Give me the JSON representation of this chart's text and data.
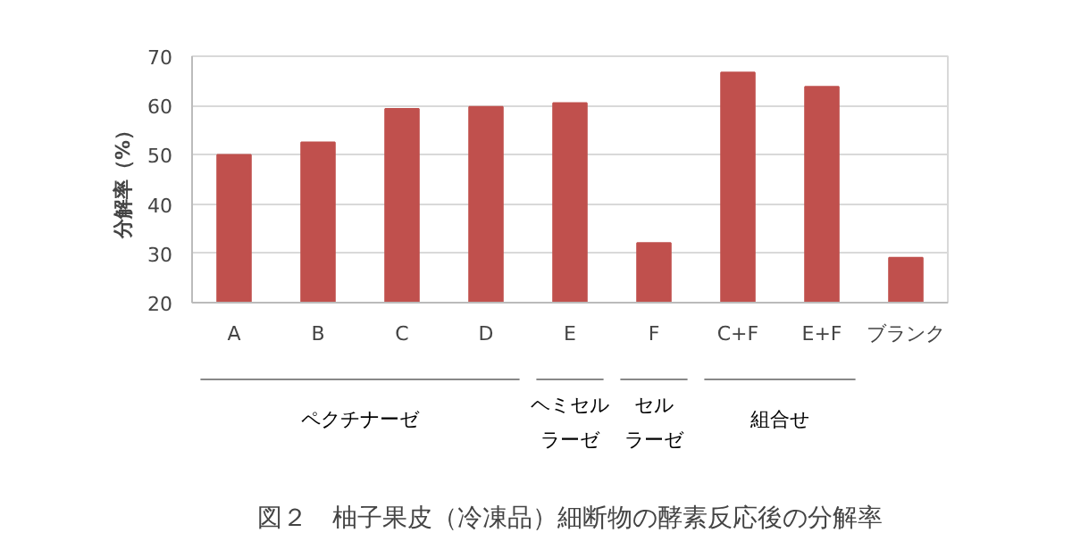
{
  "chart_data": {
    "type": "bar",
    "title": "図２　柚子果皮（冷凍品）細断物の酵素反応後の分解率",
    "ylabel": "分解率（%）",
    "categories": [
      "A",
      "B",
      "C",
      "D",
      "E",
      "F",
      "C+F",
      "E+F",
      "ブランク"
    ],
    "values": [
      50,
      52.5,
      59.3,
      59.7,
      60.5,
      32.1,
      66.7,
      63.8,
      29.1
    ],
    "color": "#c0504d",
    "ylim": [
      20,
      70
    ],
    "yticks": [
      20,
      30,
      40,
      50,
      60,
      70
    ],
    "grid": "y",
    "annotations": [
      "ペクチナーゼ",
      "ヘミセル",
      "ラーゼ",
      "セル",
      "ラーゼ",
      "組合せ"
    ]
  }
}
